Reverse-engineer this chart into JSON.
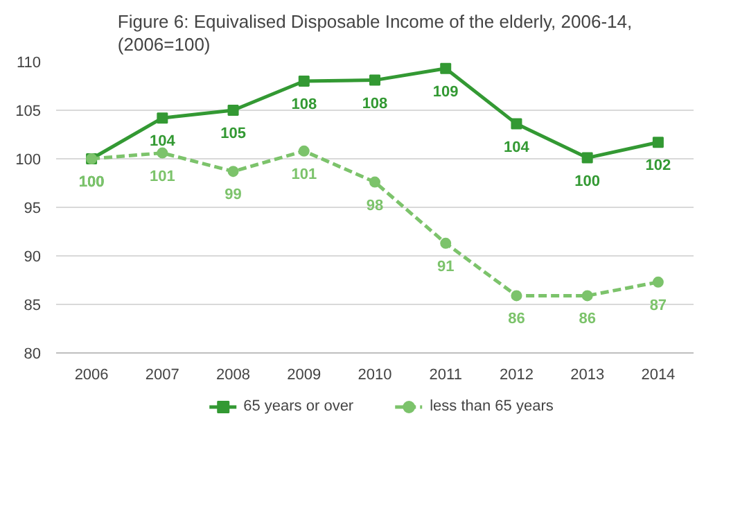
{
  "chart_data": {
    "type": "line",
    "title": "Figure 6: Equivalised Disposable Income of the elderly, 2006-14, (2006=100)",
    "x": [
      2006,
      2007,
      2008,
      2009,
      2010,
      2011,
      2012,
      2013,
      2014
    ],
    "xlim": [
      2005.5,
      2014.5
    ],
    "xticks": [
      2006,
      2007,
      2008,
      2009,
      2010,
      2011,
      2012,
      2013,
      2014
    ],
    "ylim": [
      80,
      110
    ],
    "yticks": [
      80,
      85,
      90,
      95,
      100,
      105,
      110
    ],
    "grid": "y",
    "legend": "bottom",
    "series": [
      {
        "name": "65 years or over",
        "color": "#339933",
        "marker": "square",
        "line_style": "solid",
        "values": [
          100,
          104.2,
          105.0,
          108.0,
          108.1,
          109.3,
          103.6,
          100.1,
          101.7
        ],
        "value_labels": [
          "100",
          "104",
          "105",
          "108",
          "108",
          "109",
          "104",
          "100",
          "102"
        ]
      },
      {
        "name": "less than 65 years",
        "color": "#7cc36b",
        "marker": "circle",
        "line_style": "dashed",
        "values": [
          100,
          100.6,
          98.7,
          100.8,
          97.6,
          91.3,
          85.9,
          85.9,
          87.3
        ],
        "value_labels": [
          "100",
          "101",
          "99",
          "101",
          "98",
          "91",
          "86",
          "86",
          "87"
        ]
      }
    ]
  }
}
